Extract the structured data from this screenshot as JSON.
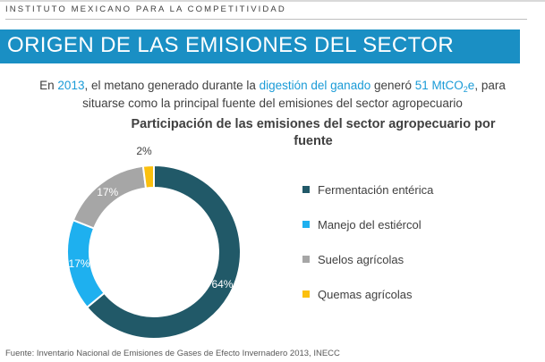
{
  "header": {
    "organization": "INSTITUTO MEXICANO PARA LA COMPETITIVIDAD",
    "title": "ORIGEN DE LAS EMISIONES DEL SECTOR"
  },
  "summary": {
    "part1": "En ",
    "year": "2013",
    "part2": ", el metano generado durante la ",
    "highlight1": "digestión del ganado",
    "part3": " generó ",
    "value": "51 MtCO",
    "value_sub": "2",
    "value_suffix": "e",
    "part4": ", para situarse como la principal fuente del emisiones del sector agropecuario"
  },
  "chart_data": {
    "type": "pie",
    "title": "Participación de las emisiones del sector agropecuario por fuente",
    "categories": [
      "Fermentación entérica",
      "Manejo del estiércol",
      "Suelos agrícolas",
      "Quemas agrícolas"
    ],
    "values": [
      64,
      17,
      17,
      2
    ],
    "labels": [
      "64%",
      "17%",
      "17%",
      "2%"
    ],
    "colors": [
      "#215968",
      "#1eb0ef",
      "#a6a6a6",
      "#fbc00e"
    ],
    "donut": true,
    "legend_position": "right"
  },
  "footer": {
    "source": "Fuente: Inventario Nacional de Emisiones de Gases de Efecto Invernadero 2013, INECC"
  }
}
